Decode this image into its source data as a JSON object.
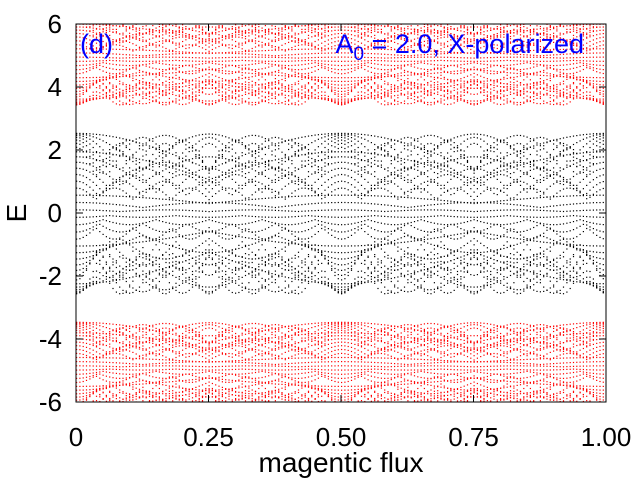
{
  "chart_data": {
    "type": "scatter",
    "panel_label": "(d)",
    "annotation": {
      "symbol": "A",
      "subscript": "0",
      "text": " = 2.0, X-polarized"
    },
    "xlabel": "magentic flux",
    "ylabel": "E",
    "xlim": [
      0,
      1.0
    ],
    "ylim": [
      -6,
      6
    ],
    "x_ticks": [
      {
        "value": 0,
        "label": "0"
      },
      {
        "value": 0.25,
        "label": "0.25"
      },
      {
        "value": 0.5,
        "label": "0.50"
      },
      {
        "value": 0.75,
        "label": "0.75"
      },
      {
        "value": 1.0,
        "label": "1.00"
      }
    ],
    "y_ticks": [
      {
        "value": 6,
        "label": "6"
      },
      {
        "value": 4,
        "label": "4"
      },
      {
        "value": 2,
        "label": "2"
      },
      {
        "value": 0,
        "label": "0"
      },
      {
        "value": -2,
        "label": "-2"
      },
      {
        "value": -4,
        "label": "-4"
      },
      {
        "value": -6,
        "label": "-6"
      }
    ],
    "series": [
      {
        "color": "#ff0000",
        "band_centers": [
          -4.9,
          4.9
        ],
        "band_halfwidth": 1.45
      },
      {
        "color": "#000000",
        "band_centers": [
          0
        ],
        "band_halfwidth": 2.55
      }
    ],
    "annotation_color": "#0000ff",
    "grid": false
  }
}
